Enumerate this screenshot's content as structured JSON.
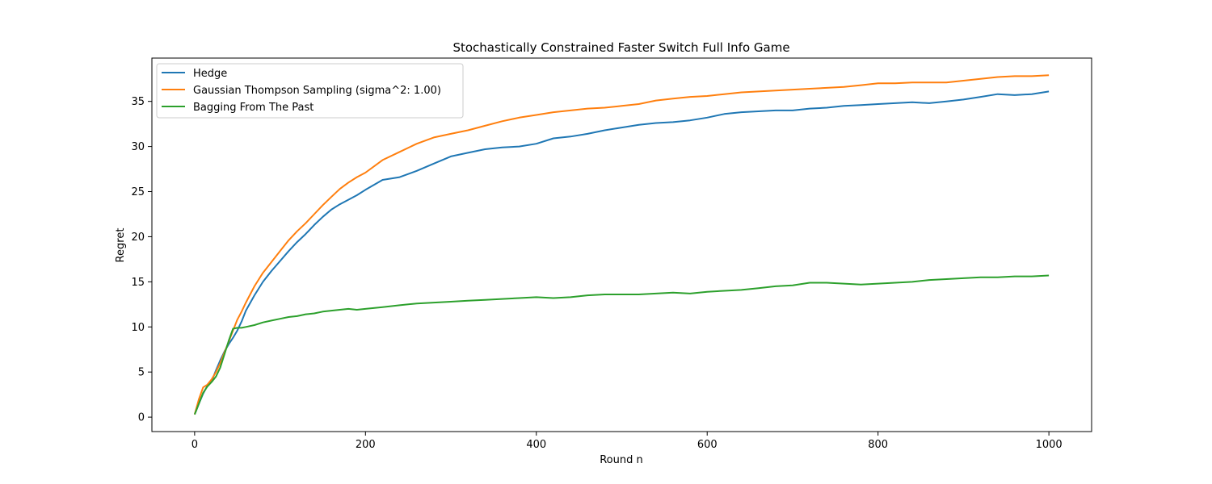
{
  "chart_data": {
    "type": "line",
    "title": "Stochastically Constrained Faster Switch Full Info Game",
    "xlabel": "Round n",
    "ylabel": "Regret",
    "xlim": [
      -50,
      1050
    ],
    "ylim": [
      -1.6,
      39.8
    ],
    "xticks": [
      0,
      200,
      400,
      600,
      800,
      1000
    ],
    "yticks": [
      0,
      5,
      10,
      15,
      20,
      25,
      30,
      35
    ],
    "grid": false,
    "legend_position": "top-left",
    "series": [
      {
        "name": "Hedge",
        "color": "#1f77b4",
        "x": [
          0,
          5,
          10,
          15,
          20,
          25,
          30,
          35,
          40,
          45,
          50,
          55,
          60,
          70,
          80,
          90,
          100,
          110,
          120,
          130,
          140,
          150,
          160,
          170,
          180,
          190,
          200,
          220,
          240,
          260,
          280,
          300,
          320,
          340,
          360,
          380,
          400,
          420,
          440,
          460,
          480,
          500,
          520,
          540,
          560,
          580,
          600,
          620,
          640,
          660,
          680,
          700,
          720,
          740,
          760,
          780,
          800,
          820,
          840,
          860,
          880,
          900,
          920,
          940,
          960,
          980,
          1000
        ],
        "y": [
          0.3,
          1.5,
          2.6,
          3.5,
          4.0,
          5.2,
          6.3,
          7.3,
          8.1,
          8.8,
          9.6,
          10.6,
          11.8,
          13.5,
          15.0,
          16.2,
          17.3,
          18.4,
          19.4,
          20.3,
          21.3,
          22.2,
          23.0,
          23.6,
          24.1,
          24.6,
          25.2,
          26.3,
          26.6,
          27.3,
          28.1,
          28.9,
          29.3,
          29.7,
          29.9,
          30.0,
          30.3,
          30.9,
          31.1,
          31.4,
          31.8,
          32.1,
          32.4,
          32.6,
          32.7,
          32.9,
          33.2,
          33.6,
          33.8,
          33.9,
          34.0,
          34.0,
          34.2,
          34.3,
          34.5,
          34.6,
          34.7,
          34.8,
          34.9,
          34.8,
          35.0,
          35.2,
          35.5,
          35.8,
          35.7,
          35.8,
          36.1
        ]
      },
      {
        "name": "Gaussian Thompson Sampling (sigma^2: 1.00)",
        "color": "#ff7f0e",
        "x": [
          0,
          5,
          10,
          15,
          20,
          25,
          30,
          35,
          40,
          45,
          50,
          55,
          60,
          70,
          80,
          90,
          100,
          110,
          120,
          130,
          140,
          150,
          160,
          170,
          180,
          190,
          200,
          220,
          240,
          260,
          280,
          300,
          320,
          340,
          360,
          380,
          400,
          420,
          440,
          460,
          480,
          500,
          520,
          540,
          560,
          580,
          600,
          620,
          640,
          660,
          680,
          700,
          720,
          740,
          760,
          780,
          800,
          820,
          840,
          860,
          880,
          900,
          920,
          940,
          960,
          980,
          1000
        ],
        "y": [
          0.3,
          2.0,
          3.3,
          3.6,
          4.2,
          5.0,
          6.0,
          7.2,
          8.4,
          9.6,
          10.8,
          11.7,
          12.7,
          14.5,
          16.0,
          17.2,
          18.4,
          19.6,
          20.6,
          21.5,
          22.5,
          23.5,
          24.4,
          25.3,
          26.0,
          26.6,
          27.1,
          28.5,
          29.4,
          30.3,
          31.0,
          31.4,
          31.8,
          32.3,
          32.8,
          33.2,
          33.5,
          33.8,
          34.0,
          34.2,
          34.3,
          34.5,
          34.7,
          35.1,
          35.3,
          35.5,
          35.6,
          35.8,
          36.0,
          36.1,
          36.2,
          36.3,
          36.4,
          36.5,
          36.6,
          36.8,
          37.0,
          37.0,
          37.1,
          37.1,
          37.1,
          37.3,
          37.5,
          37.7,
          37.8,
          37.8,
          37.9
        ]
      },
      {
        "name": "Bagging From The Past",
        "color": "#2ca02c",
        "x": [
          0,
          5,
          10,
          15,
          20,
          25,
          30,
          35,
          40,
          45,
          50,
          55,
          60,
          70,
          80,
          90,
          100,
          110,
          120,
          130,
          140,
          150,
          160,
          170,
          180,
          190,
          200,
          220,
          240,
          260,
          280,
          300,
          320,
          340,
          360,
          380,
          400,
          420,
          440,
          460,
          480,
          500,
          520,
          540,
          560,
          580,
          600,
          620,
          640,
          660,
          680,
          700,
          720,
          740,
          760,
          780,
          800,
          820,
          840,
          860,
          880,
          900,
          920,
          940,
          960,
          980,
          1000
        ],
        "y": [
          0.3,
          1.5,
          2.7,
          3.4,
          3.9,
          4.5,
          5.5,
          7.0,
          8.5,
          9.8,
          9.9,
          9.9,
          10.0,
          10.2,
          10.5,
          10.7,
          10.9,
          11.1,
          11.2,
          11.4,
          11.5,
          11.7,
          11.8,
          11.9,
          12.0,
          11.9,
          12.0,
          12.2,
          12.4,
          12.6,
          12.7,
          12.8,
          12.9,
          13.0,
          13.1,
          13.2,
          13.3,
          13.2,
          13.3,
          13.5,
          13.6,
          13.6,
          13.6,
          13.7,
          13.8,
          13.7,
          13.9,
          14.0,
          14.1,
          14.3,
          14.5,
          14.6,
          14.9,
          14.9,
          14.8,
          14.7,
          14.8,
          14.9,
          15.0,
          15.2,
          15.3,
          15.4,
          15.5,
          15.5,
          15.6,
          15.6,
          15.7
        ]
      }
    ]
  }
}
